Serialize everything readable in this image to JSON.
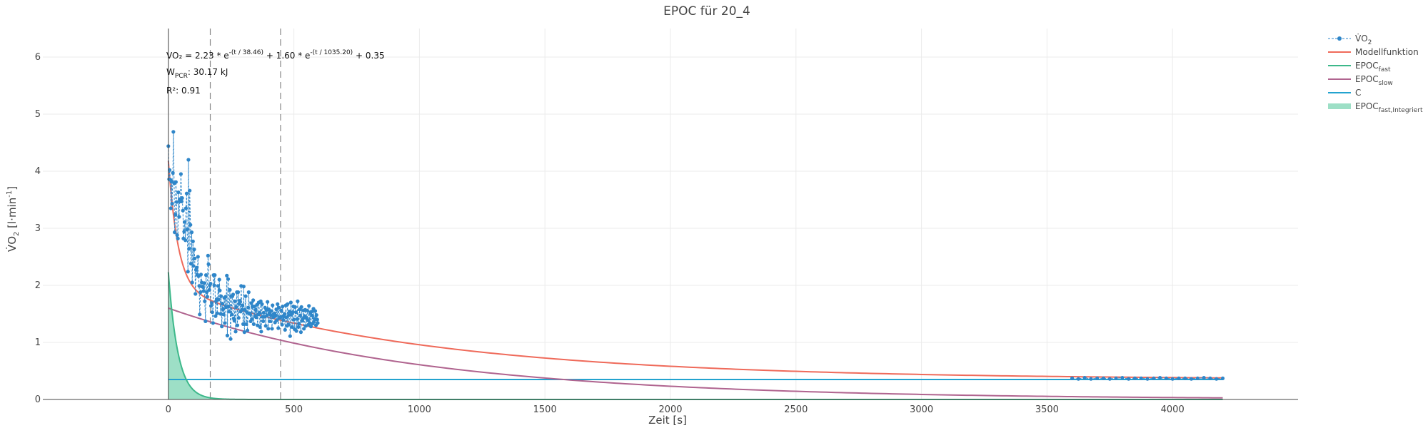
{
  "chart_data": {
    "type": "line",
    "title": "EPOC für 20_4",
    "xlabel": "Zeit [s]",
    "ylabel": {
      "base": "V̇O",
      "sub": "2",
      "rest": " [l·min",
      "sup": "-1",
      "end": "]"
    },
    "xlim": [
      -500,
      4500
    ],
    "ylim": [
      0,
      6.5
    ],
    "xticks": [
      0,
      500,
      1000,
      1500,
      2000,
      2500,
      3000,
      3500,
      4000
    ],
    "yticks": [
      0,
      1,
      2,
      3,
      4,
      5,
      6
    ],
    "grid": true,
    "legend_position": "top-right",
    "model": {
      "a_fast": 2.23,
      "tau_fast": 38.46,
      "a_slow": 1.6,
      "tau_slow": 1035.2,
      "c": 0.35,
      "x_max": 4200
    },
    "vlines": [
      167,
      447
    ],
    "annotations": {
      "formula": {
        "lhs": "VO₂ = 2.23 * e",
        "exp1": "-(t / 38.46)",
        "mid": " + 1.60 * e",
        "exp2": "-(t / 1035.20)",
        "rhs": " + 0.35"
      },
      "wpcr": {
        "base": "W",
        "sub": "PCR",
        "rest": ": 30.17 kJ"
      },
      "r2": "R²: 0.91"
    },
    "series": [
      {
        "key": "vo2",
        "name": {
          "base": "V̇O",
          "sub": "2"
        },
        "color": "#2f86c9",
        "style": "dashed-markers"
      },
      {
        "key": "model",
        "name": {
          "base": "Modellfunktion",
          "sub": ""
        },
        "color": "#ef6a5a",
        "style": "line"
      },
      {
        "key": "fast",
        "name": {
          "base": "EPOC",
          "sub": "fast"
        },
        "color": "#3db88a",
        "style": "line"
      },
      {
        "key": "slow",
        "name": {
          "base": "EPOC",
          "sub": "slow"
        },
        "color": "#b0648f",
        "style": "line"
      },
      {
        "key": "c",
        "name": {
          "base": "C",
          "sub": ""
        },
        "color": "#23a3cf",
        "style": "line"
      },
      {
        "key": "area",
        "name": {
          "base": "EPOC",
          "sub": "fast,Integriert"
        },
        "color": "#5cc9a0",
        "style": "area"
      }
    ],
    "vo2_points": [
      [
        0,
        4.44
      ],
      [
        3,
        3.86
      ],
      [
        5,
        4.02
      ],
      [
        8,
        3.85
      ],
      [
        10,
        3.35
      ],
      [
        13,
        3.82
      ],
      [
        15,
        3.43
      ],
      [
        18,
        3.97
      ],
      [
        20,
        4.69
      ],
      [
        23,
        3.79
      ],
      [
        25,
        2.93
      ],
      [
        28,
        3.24
      ],
      [
        30,
        3.81
      ],
      [
        33,
        3.46
      ],
      [
        35,
        2.88
      ],
      [
        38,
        2.82
      ],
      [
        40,
        3.63
      ],
      [
        43,
        3.2
      ],
      [
        45,
        3.51
      ],
      [
        48,
        3.47
      ],
      [
        50,
        3.95
      ],
      [
        53,
        3.47
      ],
      [
        55,
        3.53
      ],
      [
        58,
        3.31
      ],
      [
        60,
        2.82
      ],
      [
        63,
        2.94
      ],
      [
        65,
        3.11
      ],
      [
        68,
        2.79
      ],
      [
        70,
        3.35
      ],
      [
        73,
        3.61
      ],
      [
        75,
        2.98
      ],
      [
        78,
        2.24
      ],
      [
        80,
        4.2
      ],
      [
        83,
        2.64
      ],
      [
        85,
        3.66
      ],
      [
        88,
        3.06
      ],
      [
        90,
        2.38
      ],
      [
        93,
        2.93
      ],
      [
        95,
        2.05
      ],
      [
        98,
        2.77
      ],
      [
        100,
        2.34
      ],
      [
        103,
        2.63
      ],
      [
        105,
        2.47
      ],
      [
        108,
        1.85
      ],
      [
        110,
        2.27
      ],
      [
        113,
        2.31
      ],
      [
        115,
        2.19
      ],
      [
        118,
        2.5
      ],
      [
        120,
        2.16
      ],
      [
        123,
        1.99
      ],
      [
        125,
        1.49
      ],
      [
        128,
        1.88
      ],
      [
        130,
        2.19
      ],
      [
        133,
        2.05
      ],
      [
        135,
        1.98
      ],
      [
        138,
        1.97
      ],
      [
        140,
        1.9
      ],
      [
        143,
        2.04
      ],
      [
        145,
        1.72
      ],
      [
        148,
        1.37
      ],
      [
        150,
        2.18
      ],
      [
        153,
        1.88
      ],
      [
        155,
        1.8
      ],
      [
        158,
        2.52
      ],
      [
        160,
        2.37
      ],
      [
        163,
        1.92
      ],
      [
        165,
        2.0
      ],
      [
        168,
        2.03
      ],
      [
        170,
        1.64
      ],
      [
        173,
        1.69
      ],
      [
        175,
        1.53
      ],
      [
        178,
        1.34
      ],
      [
        180,
        2.18
      ],
      [
        183,
        2.0
      ],
      [
        185,
        2.18
      ],
      [
        188,
        1.46
      ],
      [
        190,
        1.72
      ],
      [
        193,
        1.76
      ],
      [
        195,
        1.51
      ],
      [
        198,
        1.99
      ],
      [
        200,
        1.75
      ],
      [
        203,
        2.1
      ],
      [
        205,
        1.91
      ],
      [
        208,
        1.5
      ],
      [
        210,
        1.81
      ],
      [
        213,
        1.28
      ],
      [
        215,
        1.68
      ],
      [
        218,
        1.58
      ],
      [
        220,
        1.49
      ],
      [
        223,
        1.78
      ],
      [
        225,
        1.34
      ],
      [
        228,
        1.8
      ],
      [
        230,
        1.62
      ],
      [
        233,
        2.17
      ],
      [
        235,
        1.12
      ],
      [
        238,
        2.11
      ],
      [
        240,
        1.63
      ],
      [
        243,
        1.54
      ],
      [
        245,
        1.92
      ],
      [
        248,
        1.06
      ],
      [
        250,
        1.81
      ],
      [
        253,
        1.49
      ],
      [
        255,
        1.81
      ],
      [
        258,
        1.84
      ],
      [
        260,
        1.42
      ],
      [
        263,
        1.38
      ],
      [
        265,
        1.72
      ],
      [
        268,
        1.19
      ],
      [
        270,
        1.62
      ],
      [
        273,
        1.88
      ],
      [
        275,
        1.3
      ],
      [
        278,
        1.88
      ],
      [
        280,
        1.43
      ],
      [
        283,
        1.68
      ],
      [
        285,
        1.73
      ],
      [
        288,
        1.54
      ],
      [
        290,
        1.99
      ],
      [
        293,
        1.57
      ],
      [
        295,
        1.65
      ],
      [
        298,
        1.32
      ],
      [
        300,
        1.98
      ],
      [
        303,
        1.18
      ],
      [
        305,
        1.57
      ],
      [
        308,
        1.81
      ],
      [
        310,
        1.32
      ],
      [
        313,
        1.53
      ],
      [
        315,
        1.21
      ],
      [
        318,
        1.61
      ],
      [
        320,
        1.88
      ],
      [
        323,
        1.51
      ],
      [
        325,
        1.5
      ],
      [
        328,
        1.37
      ],
      [
        330,
        1.69
      ],
      [
        333,
        1.41
      ],
      [
        335,
        1.63
      ],
      [
        338,
        1.74
      ],
      [
        340,
        1.32
      ],
      [
        343,
        1.63
      ],
      [
        345,
        1.46
      ],
      [
        348,
        1.57
      ],
      [
        350,
        1.44
      ],
      [
        353,
        1.66
      ],
      [
        355,
        1.3
      ],
      [
        358,
        1.49
      ],
      [
        360,
        1.7
      ],
      [
        363,
        1.52
      ],
      [
        365,
        1.27
      ],
      [
        368,
        1.72
      ],
      [
        370,
        1.19
      ],
      [
        373,
        1.67
      ],
      [
        375,
        1.45
      ],
      [
        378,
        1.37
      ],
      [
        380,
        1.52
      ],
      [
        383,
        1.45
      ],
      [
        385,
        1.61
      ],
      [
        388,
        1.29
      ],
      [
        390,
        1.57
      ],
      [
        393,
        1.47
      ],
      [
        395,
        1.71
      ],
      [
        398,
        1.24
      ],
      [
        400,
        1.58
      ],
      [
        403,
        1.52
      ],
      [
        405,
        1.37
      ],
      [
        408,
        1.48
      ],
      [
        410,
        1.55
      ],
      [
        413,
        1.24
      ],
      [
        415,
        1.65
      ],
      [
        418,
        1.44
      ],
      [
        420,
        1.46
      ],
      [
        423,
        1.51
      ],
      [
        425,
        1.35
      ],
      [
        428,
        1.47
      ],
      [
        430,
        1.58
      ],
      [
        433,
        1.39
      ],
      [
        435,
        1.67
      ],
      [
        438,
        1.25
      ],
      [
        440,
        1.61
      ],
      [
        443,
        1.43
      ],
      [
        445,
        1.43
      ],
      [
        448,
        1.45
      ],
      [
        450,
        1.56
      ],
      [
        453,
        1.31
      ],
      [
        455,
        1.63
      ],
      [
        458,
        1.39
      ],
      [
        460,
        1.45
      ],
      [
        463,
        1.5
      ],
      [
        465,
        1.22
      ],
      [
        468,
        1.65
      ],
      [
        470,
        1.44
      ],
      [
        473,
        1.29
      ],
      [
        475,
        1.67
      ],
      [
        478,
        1.31
      ],
      [
        480,
        1.48
      ],
      [
        483,
        1.54
      ],
      [
        485,
        1.11
      ],
      [
        488,
        1.7
      ],
      [
        490,
        1.49
      ],
      [
        493,
        1.27
      ],
      [
        495,
        1.53
      ],
      [
        498,
        1.63
      ],
      [
        500,
        1.4
      ],
      [
        503,
        1.23
      ],
      [
        505,
        1.62
      ],
      [
        508,
        1.53
      ],
      [
        510,
        1.2
      ],
      [
        513,
        1.41
      ],
      [
        515,
        1.72
      ],
      [
        518,
        1.27
      ],
      [
        520,
        1.33
      ],
      [
        523,
        1.58
      ],
      [
        525,
        1.47
      ],
      [
        528,
        1.18
      ],
      [
        530,
        1.62
      ],
      [
        533,
        1.38
      ],
      [
        535,
        1.41
      ],
      [
        538,
        1.56
      ],
      [
        540,
        1.24
      ],
      [
        543,
        1.46
      ],
      [
        545,
        1.57
      ],
      [
        548,
        1.29
      ],
      [
        550,
        1.43
      ],
      [
        553,
        1.56
      ],
      [
        555,
        1.39
      ],
      [
        558,
        1.31
      ],
      [
        560,
        1.64
      ],
      [
        563,
        1.34
      ],
      [
        565,
        1.52
      ],
      [
        568,
        1.28
      ],
      [
        570,
        1.54
      ],
      [
        573,
        1.47
      ],
      [
        575,
        1.33
      ],
      [
        578,
        1.59
      ],
      [
        580,
        1.36
      ],
      [
        583,
        1.41
      ],
      [
        585,
        1.55
      ],
      [
        588,
        1.3
      ],
      [
        590,
        1.48
      ],
      [
        593,
        1.4
      ],
      [
        595,
        1.34
      ],
      [
        3600,
        0.37
      ],
      [
        3625,
        0.36
      ],
      [
        3650,
        0.38
      ],
      [
        3675,
        0.36
      ],
      [
        3700,
        0.37
      ],
      [
        3725,
        0.37
      ],
      [
        3750,
        0.36
      ],
      [
        3775,
        0.37
      ],
      [
        3800,
        0.38
      ],
      [
        3825,
        0.36
      ],
      [
        3850,
        0.37
      ],
      [
        3875,
        0.37
      ],
      [
        3900,
        0.36
      ],
      [
        3925,
        0.37
      ],
      [
        3950,
        0.38
      ],
      [
        3975,
        0.37
      ],
      [
        4000,
        0.36
      ],
      [
        4025,
        0.37
      ],
      [
        4050,
        0.37
      ],
      [
        4075,
        0.36
      ],
      [
        4100,
        0.37
      ],
      [
        4125,
        0.38
      ],
      [
        4150,
        0.37
      ],
      [
        4175,
        0.36
      ],
      [
        4200,
        0.37
      ]
    ]
  }
}
